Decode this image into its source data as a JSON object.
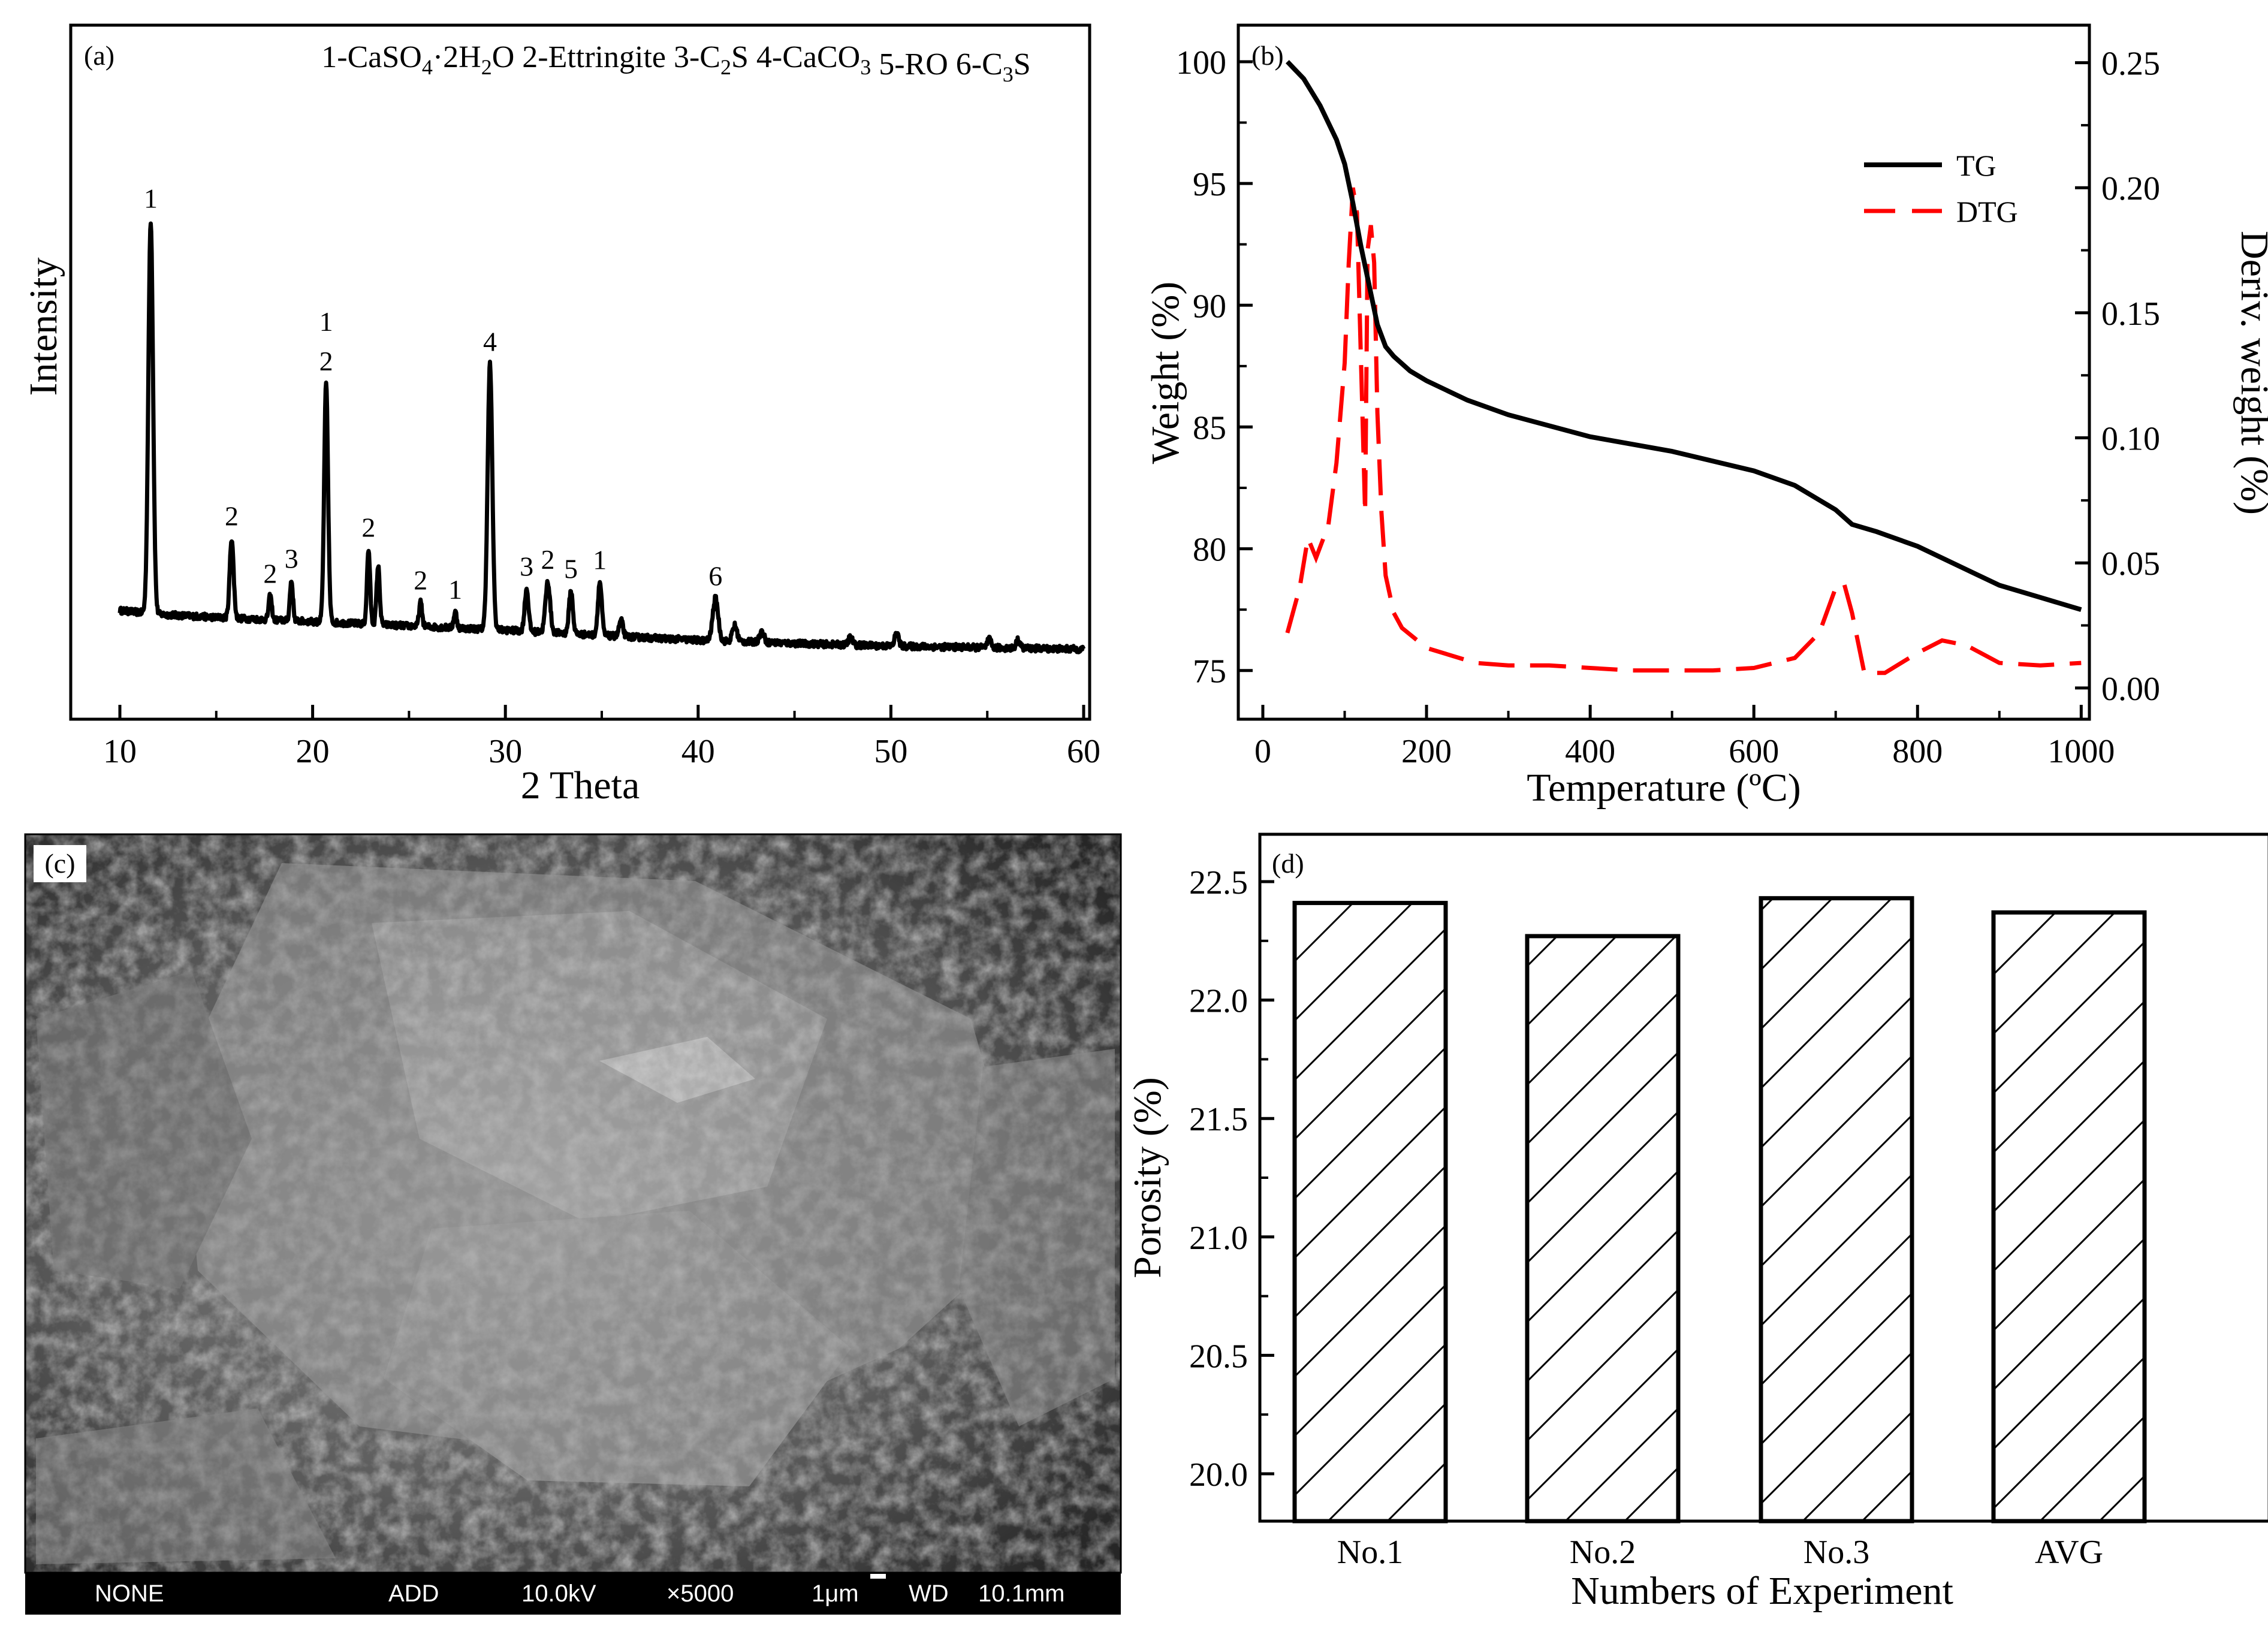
{
  "figure": {
    "panel_tags": [
      "(a)",
      "(b)",
      "(c)",
      "(d)"
    ]
  },
  "chart_data": [
    {
      "panel": "(a)",
      "type": "line",
      "title": "1-CaSO4·2H2O 2-Ettringite 3-C2S 4-CaCO3 5-RO 6-C3S",
      "legend_items": [
        {
          "num": "1-CaSO",
          "sub1": "4",
          "mid1": "·2H",
          "sub2": "2",
          "tail": "O"
        },
        {
          "num": "2-Ettringite"
        },
        {
          "num": "3-C",
          "sub1": "2",
          "tail": "S"
        },
        {
          "num": "4-CaCO",
          "sub1": "3"
        },
        {
          "num": "5-RO"
        },
        {
          "num": "6-C",
          "sub1": "3",
          "tail": "S"
        }
      ],
      "xlabel": "2 Theta",
      "ylabel": "Intensity",
      "xlim": [
        10,
        60
      ],
      "ylim": [
        0,
        100
      ],
      "xticks": [
        10,
        20,
        30,
        40,
        50,
        60
      ],
      "baseline": [
        [
          10,
          7.5
        ],
        [
          12,
          6.8
        ],
        [
          15,
          6.2
        ],
        [
          20,
          5.4
        ],
        [
          25,
          4.6
        ],
        [
          30,
          3.8
        ],
        [
          35,
          2.8
        ],
        [
          40,
          1.9
        ],
        [
          45,
          1.3
        ],
        [
          50,
          0.8
        ],
        [
          55,
          0.5
        ],
        [
          60,
          0.2
        ]
      ],
      "peaks": [
        {
          "x": 11.6,
          "h": 74,
          "w": 0.12,
          "label": "1"
        },
        {
          "x": 15.8,
          "h": 15,
          "w": 0.1,
          "label": "2"
        },
        {
          "x": 17.8,
          "h": 4.5,
          "w": 0.08,
          "label": "2"
        },
        {
          "x": 18.9,
          "h": 7.5,
          "w": 0.08,
          "label": "3"
        },
        {
          "x": 20.7,
          "h": 45,
          "w": 0.1,
          "label": "1\n2"
        },
        {
          "x": 22.9,
          "h": 14,
          "w": 0.08,
          "label": "2"
        },
        {
          "x": 23.4,
          "h": 11,
          "w": 0.08,
          "label": ""
        },
        {
          "x": 25.6,
          "h": 4.5,
          "w": 0.08,
          "label": "2"
        },
        {
          "x": 27.4,
          "h": 3,
          "w": 0.08,
          "label": "1"
        },
        {
          "x": 29.2,
          "h": 50,
          "w": 0.12,
          "label": "4"
        },
        {
          "x": 31.1,
          "h": 8,
          "w": 0.1,
          "label": "3"
        },
        {
          "x": 32.2,
          "h": 9.5,
          "w": 0.12,
          "label": "2"
        },
        {
          "x": 33.4,
          "h": 8,
          "w": 0.1,
          "label": "5"
        },
        {
          "x": 34.9,
          "h": 10,
          "w": 0.1,
          "label": "1"
        },
        {
          "x": 36.0,
          "h": 3,
          "w": 0.1,
          "label": ""
        },
        {
          "x": 40.9,
          "h": 8,
          "w": 0.14,
          "label": "6"
        },
        {
          "x": 41.9,
          "h": 3,
          "w": 0.12,
          "label": ""
        },
        {
          "x": 43.3,
          "h": 2,
          "w": 0.12,
          "label": ""
        },
        {
          "x": 47.9,
          "h": 1.5,
          "w": 0.1,
          "label": ""
        },
        {
          "x": 50.3,
          "h": 2.5,
          "w": 0.1,
          "label": ""
        },
        {
          "x": 55.1,
          "h": 1.5,
          "w": 0.1,
          "label": ""
        },
        {
          "x": 56.6,
          "h": 1.5,
          "w": 0.1,
          "label": ""
        }
      ]
    },
    {
      "panel": "(b)",
      "type": "line",
      "xlabel": "Temperature (ºC)",
      "ylabel": "Weight (%)",
      "y2label": "Deriv. weight (%)",
      "xlim": [
        -30,
        1010
      ],
      "ylim": [
        73,
        101.5
      ],
      "y2lim": [
        -0.0125,
        0.265
      ],
      "xticks": [
        0,
        200,
        400,
        600,
        800,
        1000
      ],
      "yticks": [
        75,
        80,
        85,
        90,
        95,
        100
      ],
      "y2ticks": [
        "0.00",
        "0.05",
        "0.10",
        "0.15",
        "0.20",
        "0.25"
      ],
      "legend": "top-right",
      "series": [
        {
          "name": "TG",
          "style": "solid",
          "color": "#000000",
          "x": [
            30,
            50,
            70,
            90,
            100,
            110,
            120,
            130,
            140,
            150,
            160,
            180,
            200,
            250,
            300,
            400,
            500,
            600,
            650,
            680,
            700,
            720,
            750,
            800,
            850,
            900,
            950,
            1000
          ],
          "y": [
            100,
            99.3,
            98.2,
            96.8,
            95.8,
            94.2,
            92.4,
            90.8,
            89.2,
            88.3,
            87.9,
            87.3,
            86.9,
            86.1,
            85.5,
            84.6,
            84.0,
            83.2,
            82.6,
            82.0,
            81.6,
            81.0,
            80.7,
            80.1,
            79.3,
            78.5,
            78.0,
            77.5
          ]
        },
        {
          "name": "DTG",
          "style": "dashed",
          "color": "#ff0000",
          "x": [
            30,
            45,
            55,
            65,
            80,
            90,
            100,
            105,
            110,
            115,
            120,
            125,
            128,
            132,
            136,
            140,
            145,
            150,
            160,
            170,
            185,
            200,
            230,
            260,
            300,
            350,
            400,
            450,
            500,
            550,
            600,
            650,
            680,
            700,
            710,
            720,
            735,
            760,
            800,
            830,
            860,
            900,
            950,
            1000
          ],
          "y": [
            0.022,
            0.04,
            0.06,
            0.052,
            0.065,
            0.09,
            0.13,
            0.17,
            0.2,
            0.19,
            0.13,
            0.07,
            0.175,
            0.185,
            0.17,
            0.11,
            0.07,
            0.045,
            0.03,
            0.024,
            0.02,
            0.016,
            0.013,
            0.01,
            0.009,
            0.009,
            0.008,
            0.007,
            0.007,
            0.007,
            0.008,
            0.012,
            0.022,
            0.04,
            0.042,
            0.03,
            0.006,
            0.006,
            0.014,
            0.019,
            0.017,
            0.01,
            0.009,
            0.01
          ]
        }
      ]
    },
    {
      "panel": "(d)",
      "type": "bar",
      "xlabel": "Numbers of Experiment",
      "ylabel": "Porosity (%)",
      "categories": [
        "No.1",
        "No.2",
        "No.3",
        "AVG"
      ],
      "values": [
        22.41,
        22.27,
        22.43,
        22.37
      ],
      "ylim": [
        19.8,
        22.7
      ],
      "yticks": [
        "20.0",
        "20.5",
        "21.0",
        "21.5",
        "22.0",
        "22.5"
      ],
      "bar_fill": "hatched"
    }
  ],
  "sem": {
    "panel": "(c)",
    "info_bar": {
      "detector": "NONE",
      "add": "ADD",
      "voltage": "10.0kV",
      "magnification": "×5000",
      "scale": "1μm",
      "wd_label": "WD",
      "wd_value": "10.1mm"
    }
  }
}
